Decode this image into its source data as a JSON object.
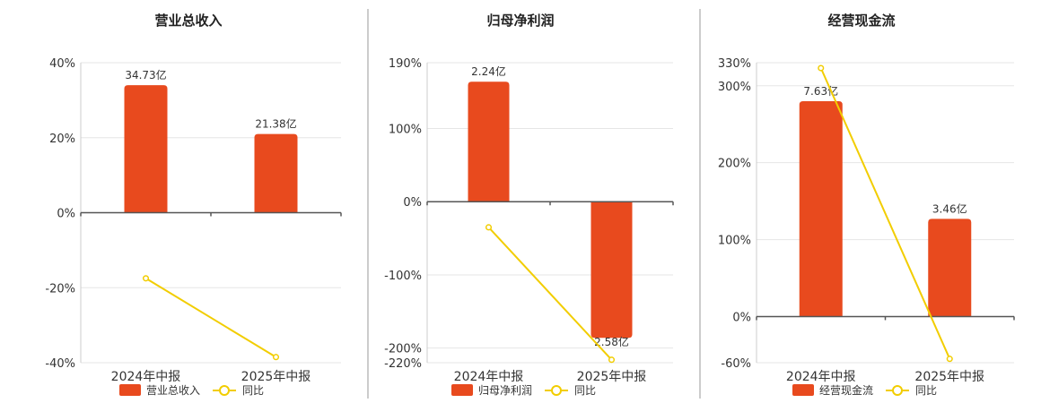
{
  "chart_data": [
    {
      "type": "bar",
      "title": "营业总收入",
      "categories": [
        "2024年中报",
        "2025年中报"
      ],
      "series": [
        {
          "name": "营业总收入",
          "type": "bar",
          "values": [
            34,
            21
          ],
          "labels": [
            "34.73亿",
            "21.38亿"
          ],
          "color": "#e84a1e"
        },
        {
          "name": "同比",
          "type": "line",
          "values": [
            -17.5,
            -38.5
          ],
          "color": "#f2cd00"
        }
      ],
      "yticks": [
        "40%",
        "20%",
        "0%",
        "-20%",
        "-40%"
      ],
      "ylim": [
        -40,
        40
      ],
      "tickvals": [
        40,
        20,
        0,
        -20,
        -40
      ],
      "grid": true,
      "legend": "bottom"
    },
    {
      "type": "bar",
      "title": "归母净利润",
      "categories": [
        "2024年中报",
        "2025年中报"
      ],
      "series": [
        {
          "name": "归母净利润",
          "type": "bar",
          "values": [
            164,
            -186
          ],
          "labels": [
            "2.24亿",
            "2.58亿"
          ],
          "color": "#e84a1e"
        },
        {
          "name": "同比",
          "type": "line",
          "values": [
            -35,
            -216
          ],
          "color": "#f2cd00"
        }
      ],
      "yticks": [
        "190%",
        "100%",
        "0%",
        "-100%",
        "-200%",
        "-220%"
      ],
      "ylim": [
        -220,
        190
      ],
      "tickvals": [
        190,
        100,
        0,
        -100,
        -200,
        -220
      ],
      "grid": true,
      "legend": "bottom"
    },
    {
      "type": "bar",
      "title": "经营现金流",
      "categories": [
        "2024年中报",
        "2025年中报"
      ],
      "series": [
        {
          "name": "经营现金流",
          "type": "bar",
          "values": [
            280,
            127
          ],
          "labels": [
            "7.63亿",
            "3.46亿"
          ],
          "color": "#e84a1e"
        },
        {
          "name": "同比",
          "type": "line",
          "values": [
            323,
            -55
          ],
          "color": "#f2cd00"
        }
      ],
      "yticks": [
        "330%",
        "300%",
        "200%",
        "100%",
        "0%",
        "-60%"
      ],
      "ylim": [
        -60,
        330
      ],
      "tickvals": [
        330,
        300,
        200,
        100,
        0,
        -60
      ],
      "grid": true,
      "legend": "bottom"
    }
  ]
}
